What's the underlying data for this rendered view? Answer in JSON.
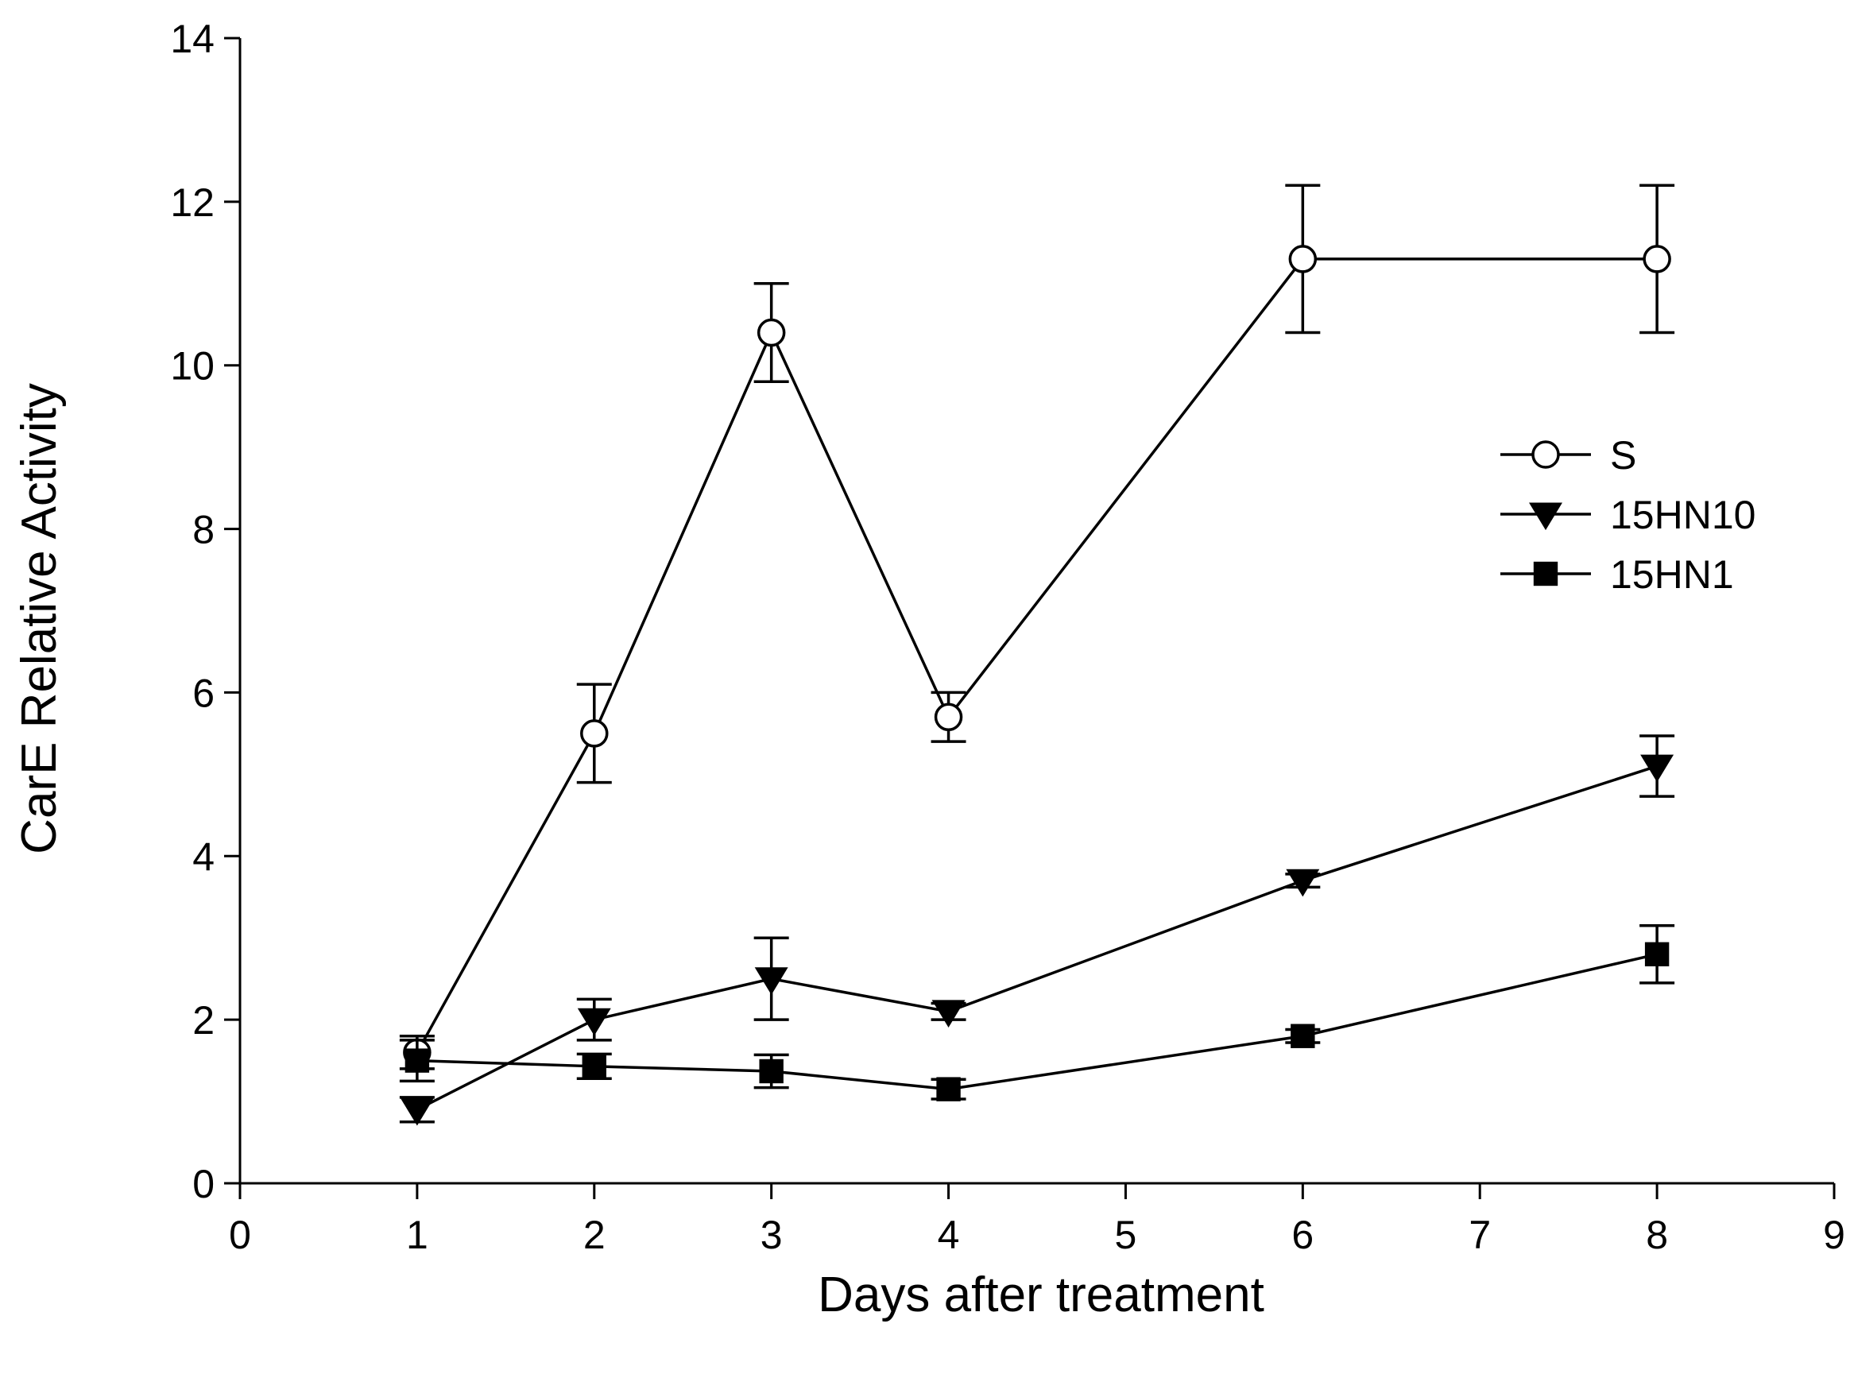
{
  "chart_data": {
    "type": "line",
    "title": "",
    "xlabel": "Days after treatment",
    "ylabel": "CarE Relative Activity",
    "xlim": [
      0,
      9
    ],
    "ylim": [
      0,
      14
    ],
    "xticks": [
      0,
      1,
      2,
      3,
      4,
      5,
      6,
      7,
      8,
      9
    ],
    "yticks": [
      0,
      2,
      4,
      6,
      8,
      10,
      12,
      14
    ],
    "grid": false,
    "legend_position": "right",
    "x": [
      1,
      2,
      3,
      4,
      6,
      8
    ],
    "series": [
      {
        "name": "S",
        "marker": "open-circle",
        "values": [
          1.6,
          5.5,
          10.4,
          5.7,
          11.3,
          11.3
        ],
        "errors": [
          0.2,
          0.6,
          0.6,
          0.3,
          0.9,
          0.9
        ]
      },
      {
        "name": "15HN10",
        "marker": "filled-triangle-down",
        "values": [
          0.9,
          2.0,
          2.5,
          2.1,
          3.7,
          5.1
        ],
        "errors": [
          0.15,
          0.25,
          0.5,
          0.1,
          0.08,
          0.37
        ]
      },
      {
        "name": "15HN1",
        "marker": "filled-square",
        "values": [
          1.5,
          1.43,
          1.37,
          1.15,
          1.8,
          2.8
        ],
        "errors": [
          0.25,
          0.15,
          0.2,
          0.12,
          0.08,
          0.35
        ]
      }
    ]
  }
}
